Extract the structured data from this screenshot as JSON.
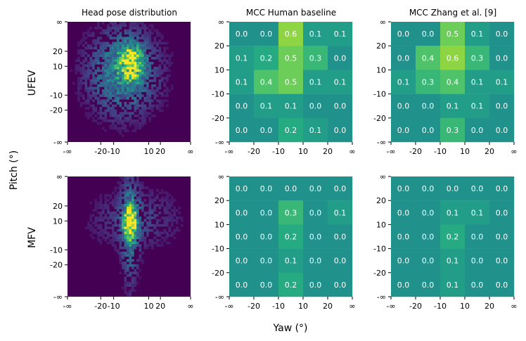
{
  "figure": {
    "xlabel": "Yaw (°)",
    "ylabel": "Pitch (°)",
    "rows": [
      "UFEV",
      "MFV"
    ],
    "columns": [
      "Head pose distribution",
      "MCC Human baseline",
      "MCC Zhang et al. [9]"
    ]
  },
  "colors": {
    "colormap": [
      "#440154",
      "#482475",
      "#414487",
      "#355f8d",
      "#2a788e",
      "#21918c",
      "#22a884",
      "#44bf70",
      "#7ad151",
      "#bddf26",
      "#fde725"
    ]
  },
  "chart_data": [
    {
      "type": "heatmap",
      "name": "UFEV head pose distribution",
      "title": "Head pose distribution",
      "row_label": "UFEV",
      "x_ticks": [
        "-∞",
        "-20",
        "-10",
        "10",
        "20",
        "∞"
      ],
      "y_ticks": [
        "∞",
        "20",
        "10",
        "-10",
        "-20",
        "-∞"
      ],
      "note": "2D histogram of head yaw/pitch; density concentrated near yaw ≈ 5°, pitch ≈ 5–15°"
    },
    {
      "type": "heatmap",
      "name": "UFEV MCC Human baseline",
      "title": "MCC Human baseline",
      "x_ticks": [
        "-∞",
        "-20",
        "-10",
        "10",
        "20",
        "∞"
      ],
      "y_ticks": [
        "∞",
        "20",
        "10",
        "-10",
        "-20",
        "-∞"
      ],
      "cell_labels": [
        [
          "0.0",
          "0.0",
          "0.6",
          "0.1",
          "0.1"
        ],
        [
          "0.1",
          "0.2",
          "0.5",
          "0.3",
          "0.0"
        ],
        [
          "0.1",
          "0.4",
          "0.5",
          "0.1",
          "0.1"
        ],
        [
          "0.0",
          "0.1",
          "0.1",
          "0.0",
          "0.0"
        ],
        [
          "0.0",
          "0.0",
          "0.2",
          "0.1",
          "0.0"
        ]
      ]
    },
    {
      "type": "heatmap",
      "name": "UFEV MCC Zhang et al.",
      "title": "MCC Zhang et al. [9]",
      "x_ticks": [
        "-∞",
        "-20",
        "-10",
        "10",
        "20",
        "∞"
      ],
      "y_ticks": [
        "∞",
        "20",
        "10",
        "-10",
        "-20",
        "-∞"
      ],
      "cell_labels": [
        [
          "0.0",
          "0.0",
          "0.5",
          "0.1",
          "0.0"
        ],
        [
          "0.0",
          "0.4",
          "0.6",
          "0.3",
          "0.0"
        ],
        [
          "0.1",
          "0.3",
          "0.4",
          "0.1",
          "0.1"
        ],
        [
          "0.0",
          "0.0",
          "0.1",
          "0.1",
          "0.0"
        ],
        [
          "0.0",
          "0.0",
          "0.3",
          "0.0",
          "0.0"
        ]
      ]
    },
    {
      "type": "heatmap",
      "name": "MFV head pose distribution",
      "row_label": "MFV",
      "x_ticks": [
        "-∞",
        "-20",
        "-10",
        "10",
        "20",
        "∞"
      ],
      "y_ticks": [
        "∞",
        "20",
        "10",
        "-10",
        "-20",
        "-∞"
      ],
      "note": "2D histogram of head yaw/pitch; narrow vertical band near yaw ≈ 0–5°"
    },
    {
      "type": "heatmap",
      "name": "MFV MCC Human baseline",
      "x_ticks": [
        "-∞",
        "-20",
        "-10",
        "10",
        "20",
        "∞"
      ],
      "y_ticks": [
        "∞",
        "20",
        "10",
        "-10",
        "-20",
        "-∞"
      ],
      "cell_labels": [
        [
          "0.0",
          "0.0",
          "0.0",
          "0.0",
          "0.0"
        ],
        [
          "0.0",
          "0.0",
          "0.3",
          "0.0",
          "0.1"
        ],
        [
          "0.0",
          "0.0",
          "0.2",
          "0.0",
          "0.0"
        ],
        [
          "0.0",
          "0.0",
          "0.1",
          "0.0",
          "0.0"
        ],
        [
          "0.0",
          "0.0",
          "0.2",
          "0.0",
          "0.0"
        ]
      ]
    },
    {
      "type": "heatmap",
      "name": "MFV MCC Zhang et al.",
      "x_ticks": [
        "-∞",
        "-20",
        "-10",
        "10",
        "20",
        "∞"
      ],
      "y_ticks": [
        "∞",
        "20",
        "10",
        "-10",
        "-20",
        "-∞"
      ],
      "cell_labels": [
        [
          "0.0",
          "0.0",
          "0.0",
          "0.0",
          "0.0"
        ],
        [
          "0.0",
          "0.0",
          "0.1",
          "0.1",
          "0.0"
        ],
        [
          "0.0",
          "0.0",
          "0.2",
          "0.0",
          "0.0"
        ],
        [
          "0.0",
          "0.0",
          "0.1",
          "0.0",
          "0.0"
        ],
        [
          "0.0",
          "0.0",
          "0.1",
          "0.0",
          "0.0"
        ]
      ]
    }
  ]
}
